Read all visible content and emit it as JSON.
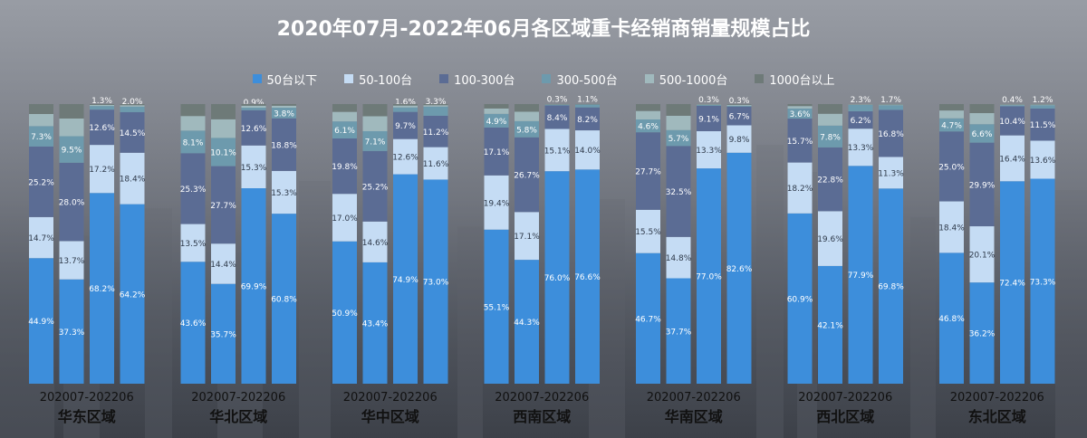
{
  "title": "2020年07月-2022年06月各区域重卡经销商销量规模占比",
  "colors": {
    "s50": "#3d8edb",
    "s50_100": "#c5dcf4",
    "s100_300": "#5b6c94",
    "s300_500": "#6d9aad",
    "s500_1000": "#a0b9bd",
    "s1000": "#6e7a78"
  },
  "chart_data": {
    "type": "bar",
    "stacked": true,
    "normalized": true,
    "legend_position": "top-center",
    "series_names": [
      "50台以下",
      "50-100台",
      "100-300台",
      "300-500台",
      "500-1000台",
      "1000台以上"
    ],
    "groups": [
      {
        "region": "华东区域",
        "period_label": "202007-202206",
        "bars": [
          {
            "values": [
              44.9,
              14.7,
              25.2,
              7.3,
              null,
              null
            ]
          },
          {
            "values": [
              37.3,
              13.7,
              28.0,
              9.5,
              null,
              null
            ]
          },
          {
            "values": [
              68.2,
              17.2,
              12.6,
              1.3,
              null,
              null
            ]
          },
          {
            "values": [
              64.2,
              18.4,
              14.5,
              2.0,
              null,
              null
            ]
          }
        ]
      },
      {
        "region": "华北区域",
        "period_label": "202007-202206",
        "bars": [
          {
            "values": [
              43.6,
              13.5,
              25.3,
              8.1,
              null,
              null
            ]
          },
          {
            "values": [
              35.7,
              14.4,
              27.7,
              10.1,
              null,
              null
            ]
          },
          {
            "values": [
              69.9,
              15.3,
              12.6,
              0.9,
              null,
              null
            ]
          },
          {
            "values": [
              60.8,
              15.3,
              18.8,
              3.8,
              null,
              null
            ]
          }
        ]
      },
      {
        "region": "华中区域",
        "period_label": "202007-202206",
        "bars": [
          {
            "values": [
              50.9,
              17.0,
              19.8,
              6.1,
              null,
              null
            ]
          },
          {
            "values": [
              43.4,
              14.6,
              25.2,
              7.1,
              null,
              null
            ]
          },
          {
            "values": [
              74.9,
              12.6,
              9.7,
              1.6,
              null,
              null
            ]
          },
          {
            "values": [
              73.0,
              11.6,
              11.2,
              3.3,
              null,
              null
            ]
          }
        ]
      },
      {
        "region": "西南区域",
        "period_label": "202007-202206",
        "bars": [
          {
            "values": [
              55.1,
              19.4,
              17.1,
              4.9,
              null,
              null
            ]
          },
          {
            "values": [
              44.3,
              17.1,
              26.7,
              5.8,
              null,
              null
            ]
          },
          {
            "values": [
              76.0,
              15.1,
              8.4,
              0.3,
              null,
              null
            ]
          },
          {
            "values": [
              76.6,
              14.0,
              8.2,
              1.1,
              null,
              null
            ]
          }
        ]
      },
      {
        "region": "华南区域",
        "period_label": "202007-202206",
        "bars": [
          {
            "values": [
              46.7,
              15.5,
              27.7,
              4.6,
              null,
              null
            ]
          },
          {
            "values": [
              37.7,
              14.8,
              32.5,
              5.7,
              null,
              null
            ]
          },
          {
            "values": [
              77.0,
              13.3,
              9.1,
              0.3,
              null,
              null
            ]
          },
          {
            "values": [
              82.6,
              9.8,
              6.7,
              0.3,
              null,
              null
            ]
          }
        ]
      },
      {
        "region": "西北区域",
        "period_label": "202007-202206",
        "bars": [
          {
            "values": [
              60.9,
              18.2,
              15.7,
              3.6,
              null,
              null
            ]
          },
          {
            "values": [
              42.1,
              19.6,
              22.8,
              7.8,
              null,
              null
            ]
          },
          {
            "values": [
              77.9,
              13.3,
              6.2,
              2.3,
              null,
              null
            ]
          },
          {
            "values": [
              69.8,
              11.3,
              16.8,
              1.7,
              null,
              null
            ]
          }
        ]
      },
      {
        "region": "东北区域",
        "period_label": "202007-202206",
        "bars": [
          {
            "values": [
              46.8,
              18.4,
              25.0,
              4.7,
              null,
              null
            ]
          },
          {
            "values": [
              36.2,
              20.1,
              29.9,
              6.6,
              null,
              null
            ]
          },
          {
            "values": [
              72.4,
              16.4,
              10.4,
              0.4,
              null,
              null
            ]
          },
          {
            "values": [
              73.3,
              13.6,
              11.5,
              1.2,
              null,
              null
            ]
          }
        ]
      }
    ]
  }
}
